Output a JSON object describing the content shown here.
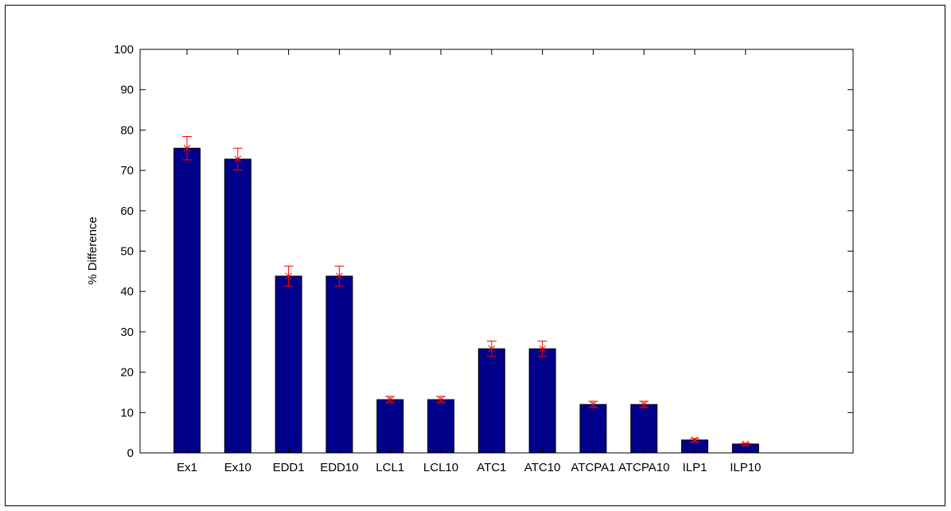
{
  "chart_data": {
    "type": "bar",
    "title": "",
    "xlabel": "",
    "ylabel": "% Difference",
    "ylim": [
      0,
      100
    ],
    "yticks": [
      0,
      10,
      20,
      30,
      40,
      50,
      60,
      70,
      80,
      90,
      100
    ],
    "categories": [
      "Ex1",
      "Ex10",
      "EDD1",
      "EDD10",
      "LCL1",
      "LCL10",
      "ATC1",
      "ATC10",
      "ATCPA1",
      "ATCPA10",
      "ILP1",
      "ILP10"
    ],
    "values": [
      75.5,
      72.8,
      43.8,
      43.8,
      13.2,
      13.2,
      25.8,
      25.8,
      12.0,
      12.0,
      3.2,
      2.2
    ],
    "errors": [
      2.9,
      2.7,
      2.5,
      2.5,
      0.8,
      0.8,
      1.9,
      1.9,
      0.8,
      0.8,
      0.4,
      0.2
    ],
    "grid": false,
    "colors": {
      "bar": "#00008b",
      "error": "#ff0000",
      "axis": "#000000"
    }
  }
}
